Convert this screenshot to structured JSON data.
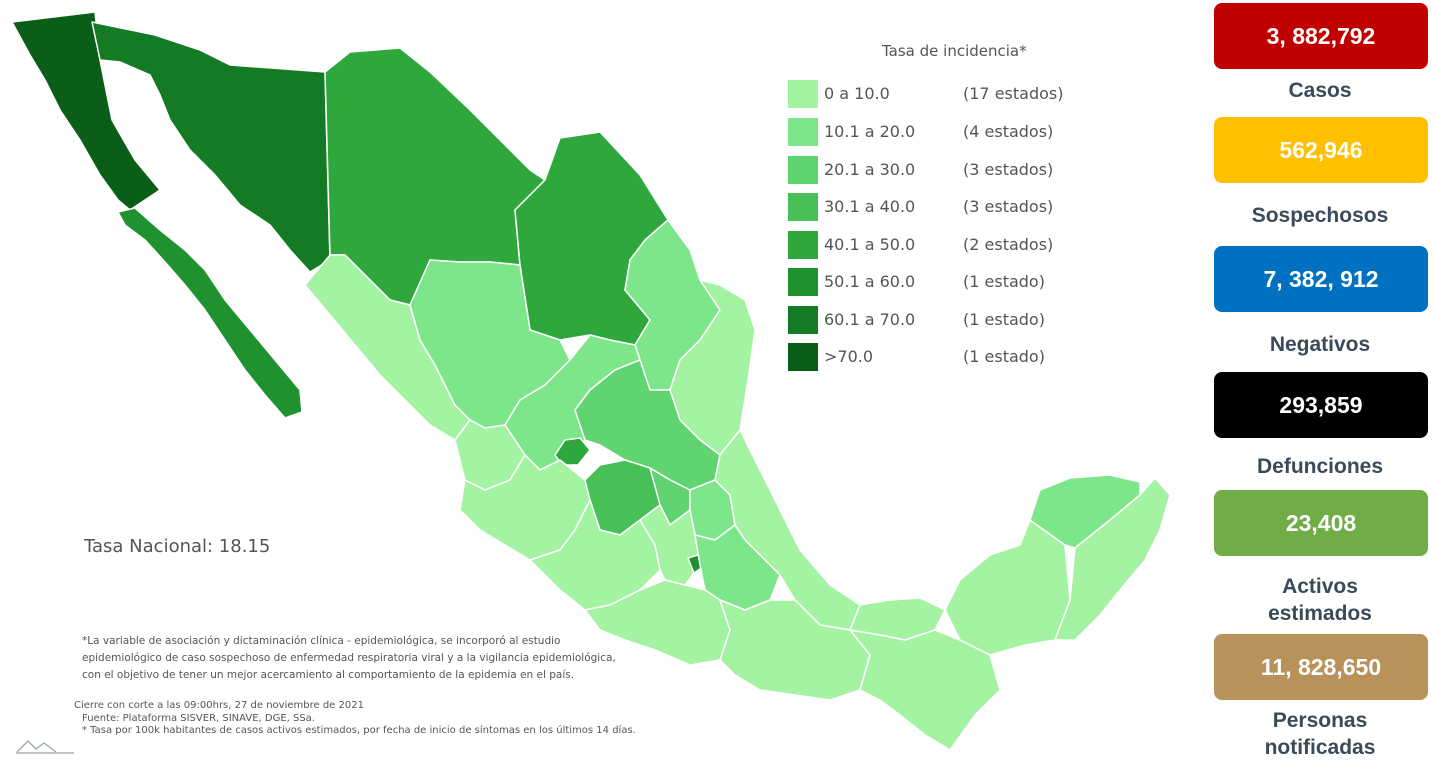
{
  "legend": {
    "title": "Tasa de incidencia*",
    "rows": [
      {
        "range": "0   a  10.0",
        "count": "(17 estados)",
        "color": "#a3f3a3"
      },
      {
        "range": "10.1 a 20.0",
        "count": "(4 estados)",
        "color": "#7de68a"
      },
      {
        "range": "20.1 a 30.0",
        "count": "(3 estados)",
        "color": "#5fd470"
      },
      {
        "range": "30.1 a 40.0",
        "count": "(3 estados)",
        "color": "#47c157"
      },
      {
        "range": "40.1 a 50.0",
        "count": "(2 estados)",
        "color": "#2ea83c"
      },
      {
        "range": "50.1 a 60.0",
        "count": "(1 estado)",
        "color": "#1f912e"
      },
      {
        "range": "60.1 a 70.0",
        "count": "(1 estado)",
        "color": "#147a23"
      },
      {
        "range": ">70.0",
        "count": "(1 estado)",
        "color": "#0a5e17"
      }
    ]
  },
  "tasa_nacional": "Tasa Nacional: 18.15",
  "note_lines": [
    "*La variable de asociación y dictaminación clínica - epidemiológica, se incorporó al estudio",
    "epidemiológico de caso sospechoso de enfermedad respiratoria viral y a la vigilancia epidemiológica,",
    "con el objetivo de tener un mejor acercamiento al comportamiento de la epidemia en el país."
  ],
  "sources": {
    "cierre": "Cierre con corte a las 09:00hrs, 27 de noviembre de 2021",
    "fuente": "Fuente: Plataforma SISVER, SINAVE, DGE, SSa.",
    "tasa_note": "* Tasa por 100k habitantes de casos activos estimados, por fecha de inicio de síntomas en los últimos 14 días."
  },
  "stats": [
    {
      "value": "3, 882,792",
      "label_lines": [
        "Casos"
      ],
      "color": "#c00000"
    },
    {
      "value": "562,946",
      "label_lines": [
        "Sospechosos"
      ],
      "color": "#ffc000"
    },
    {
      "value": "7, 382, 912",
      "label_lines": [
        "Negativos"
      ],
      "color": "#0070c0"
    },
    {
      "value": "293,859",
      "label_lines": [
        "Defunciones"
      ],
      "color": "#000000"
    },
    {
      "value": "23,408",
      "label_lines": [
        "Activos",
        "estimados"
      ],
      "color": "#70ad47"
    },
    {
      "value": "11, 828,650",
      "label_lines": [
        "Personas",
        "notificadas"
      ],
      "color": "#b8925a"
    }
  ]
}
